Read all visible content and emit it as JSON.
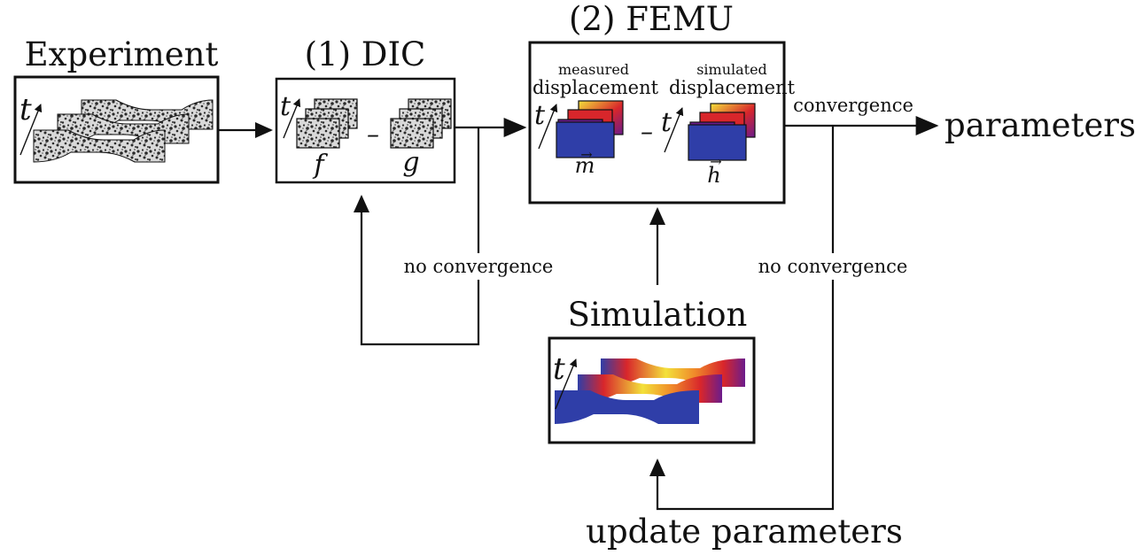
{
  "titles": {
    "experiment": "Experiment",
    "dic": "(1) DIC",
    "femu": "(2) FEMU",
    "simulation": "Simulation"
  },
  "labels": {
    "measured_line1": "measured",
    "measured_line2": "displacement",
    "simulated_line1": "simulated",
    "simulated_line2": "displacement",
    "convergence": "convergence",
    "no_convergence_left": "no convergence",
    "no_convergence_right": "no convergence",
    "parameters": "parameters",
    "update_parameters": "update parameters"
  },
  "symbols": {
    "time": "t",
    "f": "f",
    "g": "g",
    "minus": "–",
    "m_vec": "m",
    "h_vec": "h",
    "vec_arrow": "→"
  },
  "colors": {
    "field_blue": "#2f3ea8",
    "field_red": "#d8262b",
    "field_yellow": "#f3e13a",
    "field_purple": "#6b1c8c",
    "speckle_dark": "#2a2a2a",
    "speckle_light": "#d9d9d9"
  }
}
